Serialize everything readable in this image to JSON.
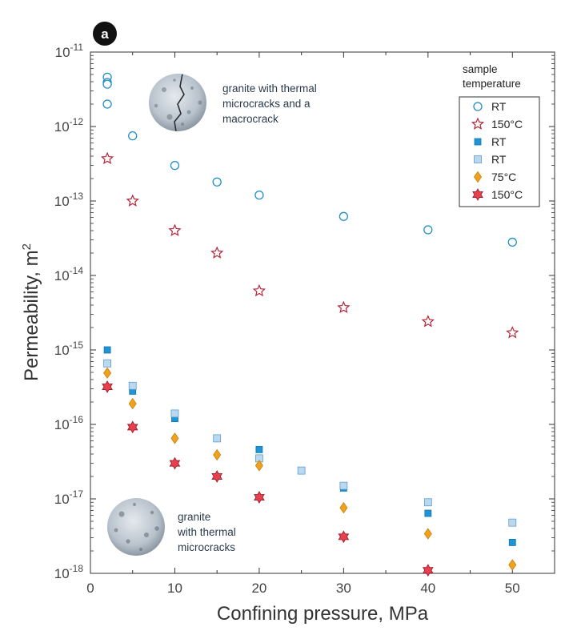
{
  "panel_label": "a",
  "chart_data": {
    "type": "scatter",
    "title": "",
    "xlabel": "Confining pressure, MPa",
    "ylabel": "Permeability, m",
    "ylabel_superscript": "2",
    "xlim": [
      0,
      55
    ],
    "ylim_log10": [
      -18,
      -11
    ],
    "y_scale": "log",
    "x_ticks": [
      0,
      10,
      20,
      30,
      40,
      50
    ],
    "y_ticks": [
      {
        "base": "10",
        "exp": "-11"
      },
      {
        "base": "10",
        "exp": "-12"
      },
      {
        "base": "10",
        "exp": "-13"
      },
      {
        "base": "10",
        "exp": "-14"
      },
      {
        "base": "10",
        "exp": "-15"
      },
      {
        "base": "10",
        "exp": "-16"
      },
      {
        "base": "10",
        "exp": "-17"
      },
      {
        "base": "10",
        "exp": "-18"
      }
    ],
    "legend_title": [
      "sample",
      "temperature"
    ],
    "legend_position": "top-right",
    "series": [
      {
        "name": "RT",
        "marker": "circle-open",
        "color": "#1f8fc4",
        "x": [
          2,
          2,
          2,
          2,
          5,
          10,
          15,
          20,
          30,
          40,
          50
        ],
        "y": [
          4.6e-12,
          3.9e-12,
          3.7e-12,
          2e-12,
          7.5e-13,
          3e-13,
          1.8e-13,
          1.2e-13,
          6.2e-14,
          4.1e-14,
          2.8e-14
        ]
      },
      {
        "name": "150°C",
        "marker": "star-open",
        "color": "#b5283c",
        "x": [
          2,
          5,
          10,
          15,
          20,
          30,
          40,
          50
        ],
        "y": [
          3.7e-13,
          1e-13,
          4e-14,
          2e-14,
          6.2e-15,
          3.7e-15,
          2.4e-15,
          1.7e-15
        ]
      },
      {
        "name": "RT",
        "marker": "square-filled",
        "color": "#1f95d6",
        "x": [
          2,
          5,
          10,
          20,
          30,
          40,
          50
        ],
        "y": [
          1e-15,
          2.8e-16,
          1.2e-16,
          4.6e-17,
          1.4e-17,
          6.4e-18,
          2.6e-18
        ]
      },
      {
        "name": "RT",
        "marker": "square-light",
        "color": "#bcd8ef",
        "x": [
          2,
          5,
          10,
          15,
          20,
          25,
          30,
          40,
          50
        ],
        "y": [
          6.6e-16,
          3.3e-16,
          1.4e-16,
          6.5e-17,
          3.5e-17,
          2.4e-17,
          1.5e-17,
          9e-18,
          4.8e-18
        ]
      },
      {
        "name": "75°C",
        "marker": "diamond-filled",
        "color": "#f0a21e",
        "x": [
          2,
          5,
          10,
          15,
          20,
          30,
          40,
          50
        ],
        "y": [
          4.9e-16,
          1.9e-16,
          6.5e-17,
          3.9e-17,
          2.8e-17,
          7.6e-18,
          3.4e-18,
          1.3e-18
        ]
      },
      {
        "name": "150°C",
        "marker": "star-filled",
        "color": "#e8404f",
        "x": [
          2,
          5,
          10,
          15,
          20,
          30,
          40
        ],
        "y": [
          3.2e-16,
          9.2e-17,
          3e-17,
          2e-17,
          1.05e-17,
          3.1e-18,
          1.1e-18
        ]
      }
    ],
    "annotations": [
      {
        "id": "top",
        "lines": [
          "granite with thermal",
          "microcracks and a",
          "macrocrack"
        ]
      },
      {
        "id": "bottom",
        "lines": [
          "granite",
          "with thermal",
          "microcracks"
        ]
      }
    ]
  }
}
